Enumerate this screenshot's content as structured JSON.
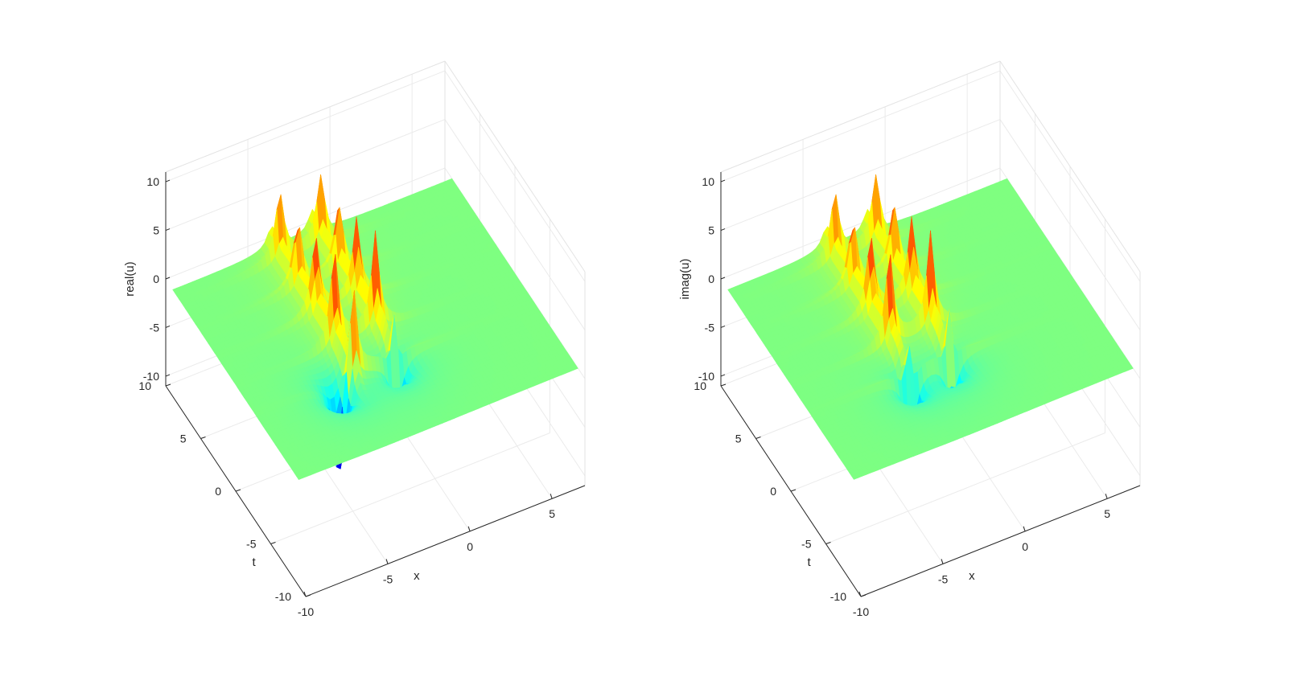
{
  "chart_data": [
    {
      "type": "surface",
      "zlabel": "real(u)",
      "xlabel": "x",
      "ylabel": "t",
      "xlim": [
        -10,
        7
      ],
      "ylim": [
        -10,
        10
      ],
      "zlim": [
        -11,
        11
      ],
      "xticks": [
        "-10",
        "-5",
        "0",
        "5"
      ],
      "yticks": [
        "-10",
        "-5",
        "0",
        "5",
        "10"
      ],
      "zticks": [
        "-10",
        "-5",
        "0",
        "5",
        "10"
      ],
      "colormap": "jet",
      "grid": true,
      "features": [
        {
          "kind": "ridge",
          "x": -4,
          "t_from": -3,
          "t_to": 10,
          "peak": 10
        },
        {
          "kind": "ridge",
          "x": -1.5,
          "t_from": -3,
          "t_to": 10,
          "peak": 10
        },
        {
          "kind": "trough",
          "x": -5,
          "t": -3,
          "depth": -10
        },
        {
          "kind": "trough",
          "x": -1.5,
          "t": -3,
          "depth": -8
        }
      ]
    },
    {
      "type": "surface",
      "zlabel": "imag(u)",
      "xlabel": "x",
      "ylabel": "t",
      "xlim": [
        -10,
        7
      ],
      "ylim": [
        -10,
        10
      ],
      "zlim": [
        -11,
        11
      ],
      "xticks": [
        "-10",
        "-5",
        "0",
        "5"
      ],
      "yticks": [
        "-10",
        "-5",
        "0",
        "5",
        "10"
      ],
      "zticks": [
        "-10",
        "-5",
        "0",
        "5",
        "10"
      ],
      "colormap": "jet",
      "grid": true,
      "features": [
        {
          "kind": "ridge",
          "x": -4,
          "t_from": -3,
          "t_to": 10,
          "peak": 10
        },
        {
          "kind": "ridge",
          "x": -1.5,
          "t_from": -3,
          "t_to": 10,
          "peak": 10
        },
        {
          "kind": "trough",
          "x": -4,
          "t": -3,
          "depth": -9
        },
        {
          "kind": "trough",
          "x": -1.5,
          "t": -3,
          "depth": -7
        }
      ]
    }
  ]
}
